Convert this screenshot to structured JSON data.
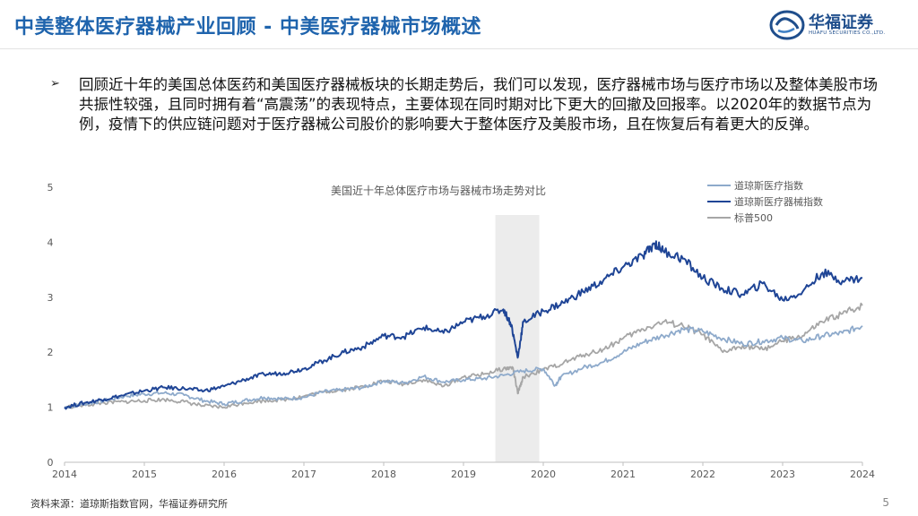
{
  "header": {
    "title": "中美整体医疗器械产业回顾 - 中美医疗器械市场概述",
    "logo_text": "华福证券",
    "logo_sub": "HUAFU SECURITIES CO.,LTD."
  },
  "bullet": {
    "arrow": "➢",
    "text": "回顾近十年的美国总体医药和美国医疗器械板块的长期走势后，我们可以发现，医疗器械市场与医疗市场以及整体美股市场共振性较强，且同时拥有着“高震荡”的表现特点，主要体现在同时期对比下更大的回撤及回报率。以2020年的数据节点为例，疫情下的供应链问题对于医疗器械公司股价的影响要大于整体医疗及美股市场，且在恢复后有着更大的反弹。"
  },
  "chart_data": {
    "type": "line",
    "title": "美国近十年总体医疗市场与器械市场走势对比",
    "xlabel": "",
    "ylabel": "",
    "xlim": [
      2014,
      2024
    ],
    "ylim": [
      0,
      5
    ],
    "x_ticks": [
      "2014",
      "2015",
      "2016",
      "2017",
      "2018",
      "2019",
      "2020",
      "2021",
      "2022",
      "2023",
      "2024"
    ],
    "y_ticks": [
      "0",
      "1",
      "2",
      "3",
      "4",
      "5"
    ],
    "legend_position": "top-right",
    "highlight_band": [
      2019.4,
      2019.95
    ],
    "series": [
      {
        "name": "道琼斯医疗指数",
        "color": "#8eaacb",
        "x": [
          2014.0,
          2014.25,
          2014.5,
          2014.75,
          2015.0,
          2015.25,
          2015.5,
          2015.75,
          2016.0,
          2016.25,
          2016.5,
          2016.75,
          2017.0,
          2017.25,
          2017.5,
          2017.75,
          2018.0,
          2018.25,
          2018.5,
          2018.75,
          2019.0,
          2019.25,
          2019.5,
          2019.75,
          2020.0,
          2020.15,
          2020.22,
          2020.5,
          2020.75,
          2021.0,
          2021.25,
          2021.5,
          2021.75,
          2022.0,
          2022.25,
          2022.5,
          2022.75,
          2023.0,
          2023.25,
          2023.5,
          2023.75,
          2024.0
        ],
        "y": [
          1.0,
          1.06,
          1.12,
          1.2,
          1.24,
          1.26,
          1.22,
          1.12,
          1.06,
          1.12,
          1.18,
          1.15,
          1.18,
          1.28,
          1.32,
          1.36,
          1.48,
          1.44,
          1.56,
          1.46,
          1.5,
          1.52,
          1.58,
          1.66,
          1.7,
          1.4,
          1.55,
          1.72,
          1.82,
          2.0,
          2.18,
          2.3,
          2.42,
          2.38,
          2.25,
          2.15,
          2.2,
          2.26,
          2.2,
          2.3,
          2.35,
          2.48
        ]
      },
      {
        "name": "道琼斯医疗器械指数",
        "color": "#1f4596",
        "x": [
          2014.0,
          2014.25,
          2014.5,
          2014.75,
          2015.0,
          2015.25,
          2015.5,
          2015.75,
          2016.0,
          2016.25,
          2016.5,
          2016.75,
          2017.0,
          2017.25,
          2017.5,
          2017.75,
          2018.0,
          2018.25,
          2018.5,
          2018.75,
          2019.0,
          2019.25,
          2019.5,
          2019.6,
          2019.68,
          2019.75,
          2020.0,
          2020.25,
          2020.5,
          2020.75,
          2021.0,
          2021.25,
          2021.4,
          2021.5,
          2021.75,
          2022.0,
          2022.25,
          2022.5,
          2022.75,
          2023.0,
          2023.25,
          2023.5,
          2023.75,
          2024.0
        ],
        "y": [
          1.0,
          1.08,
          1.15,
          1.22,
          1.3,
          1.36,
          1.34,
          1.3,
          1.38,
          1.5,
          1.6,
          1.62,
          1.7,
          1.85,
          2.0,
          2.1,
          2.3,
          2.28,
          2.45,
          2.35,
          2.55,
          2.65,
          2.78,
          2.5,
          1.9,
          2.55,
          2.75,
          2.9,
          3.1,
          3.3,
          3.55,
          3.75,
          3.98,
          3.85,
          3.7,
          3.35,
          3.15,
          3.05,
          3.25,
          2.95,
          3.1,
          3.45,
          3.3,
          3.35
        ]
      },
      {
        "name": "标普500",
        "color": "#a6a6a6",
        "x": [
          2014.0,
          2014.25,
          2014.5,
          2014.75,
          2015.0,
          2015.25,
          2015.5,
          2015.75,
          2016.0,
          2016.25,
          2016.5,
          2016.75,
          2017.0,
          2017.25,
          2017.5,
          2017.75,
          2018.0,
          2018.25,
          2018.5,
          2018.75,
          2019.0,
          2019.25,
          2019.5,
          2019.62,
          2019.68,
          2019.75,
          2020.0,
          2020.25,
          2020.5,
          2020.75,
          2021.0,
          2021.25,
          2021.5,
          2021.75,
          2022.0,
          2022.25,
          2022.5,
          2022.75,
          2023.0,
          2023.25,
          2023.5,
          2023.75,
          2024.0
        ],
        "y": [
          1.0,
          1.04,
          1.08,
          1.1,
          1.12,
          1.14,
          1.1,
          1.02,
          1.0,
          1.08,
          1.12,
          1.14,
          1.2,
          1.28,
          1.32,
          1.38,
          1.48,
          1.42,
          1.5,
          1.38,
          1.55,
          1.6,
          1.7,
          1.72,
          1.25,
          1.55,
          1.68,
          1.8,
          1.95,
          2.05,
          2.25,
          2.42,
          2.55,
          2.48,
          2.32,
          2.0,
          2.12,
          2.05,
          2.2,
          2.3,
          2.55,
          2.7,
          2.85
        ]
      }
    ]
  },
  "footer": {
    "source": "资料来源：道琼斯指数官网，华福证券研究所",
    "page": "5"
  }
}
